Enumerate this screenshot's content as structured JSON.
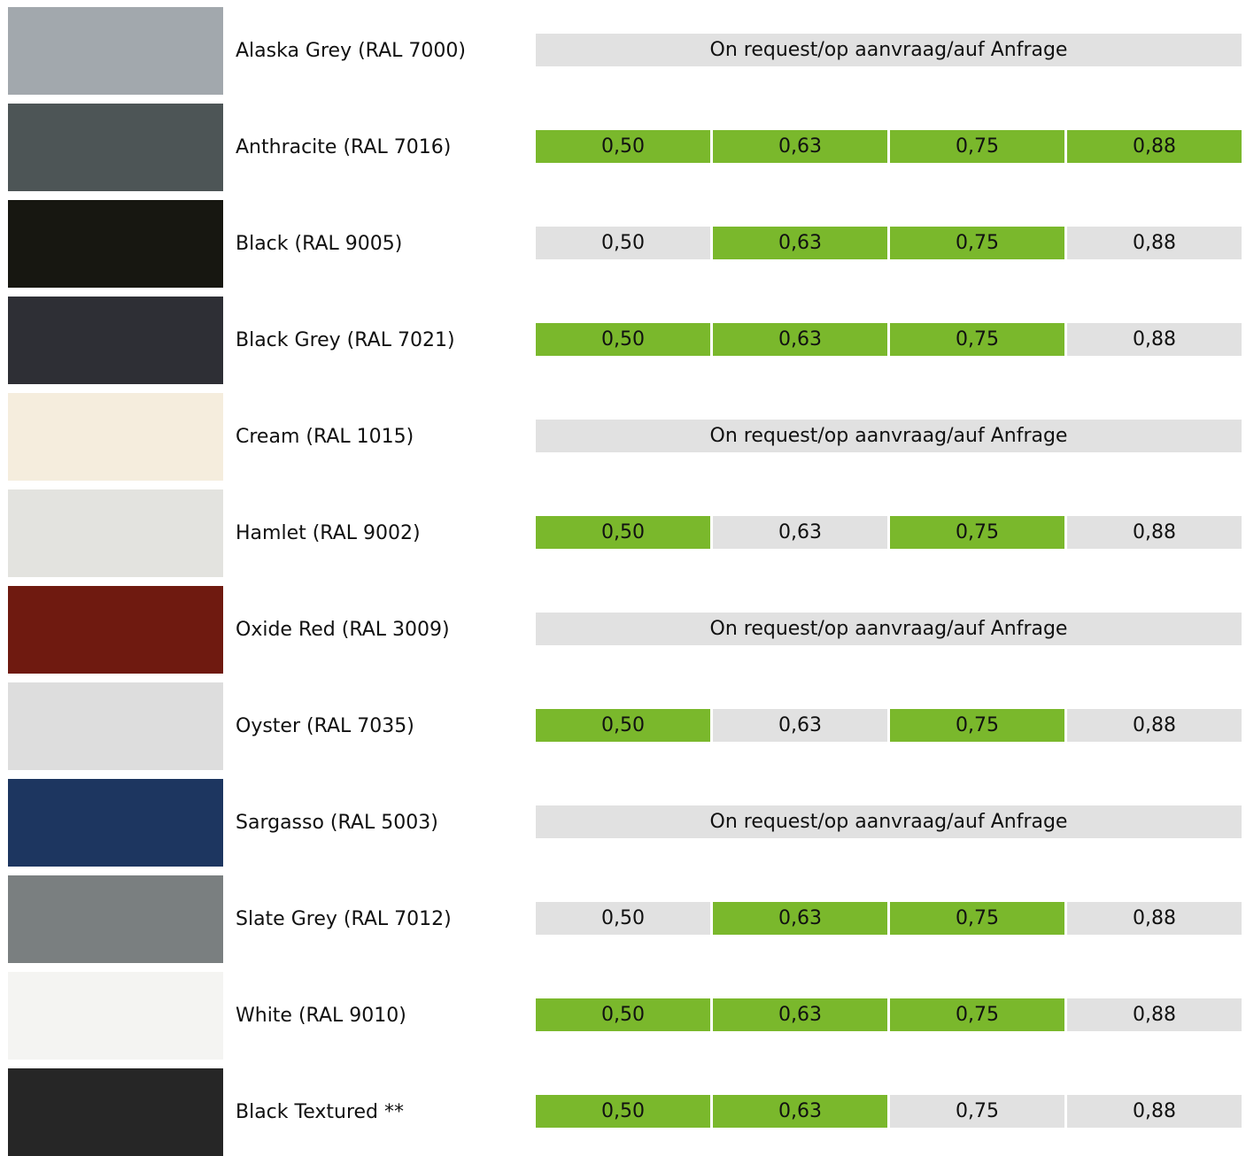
{
  "colors": {
    "available": "#7ab82c",
    "unavailable": "#e1e1e1"
  },
  "thickness_labels": [
    "0,50",
    "0,63",
    "0,75",
    "0,88"
  ],
  "rows": [
    {
      "name": "Alaska Grey (RAL 7000)",
      "swatch": "#a2a8ad",
      "on_request": "On request/op aanvraag/auf Anfrage"
    },
    {
      "name": "Anthracite (RAL 7016)",
      "swatch": "#4d5556",
      "availability": [
        true,
        true,
        true,
        true
      ]
    },
    {
      "name": "Black (RAL 9005)",
      "swatch": "#171711",
      "availability": [
        false,
        true,
        true,
        false
      ]
    },
    {
      "name": "Black Grey (RAL 7021)",
      "swatch": "#2e2f35",
      "availability": [
        true,
        true,
        true,
        false
      ]
    },
    {
      "name": "Cream (RAL 1015)",
      "swatch": "#f5eddd",
      "on_request": "On request/op aanvraag/auf Anfrage"
    },
    {
      "name": "Hamlet (RAL 9002)",
      "swatch": "#e3e3df",
      "availability": [
        true,
        false,
        true,
        false
      ]
    },
    {
      "name": "Oxide Red (RAL 3009)",
      "swatch": "#6f1a10",
      "on_request": "On request/op aanvraag/auf Anfrage"
    },
    {
      "name": "Oyster (RAL 7035)",
      "swatch": "#dddddd",
      "availability": [
        true,
        false,
        true,
        false
      ]
    },
    {
      "name": "Sargasso (RAL 5003)",
      "swatch": "#1d3660",
      "on_request": "On request/op aanvraag/auf Anfrage"
    },
    {
      "name": "Slate Grey (RAL 7012)",
      "swatch": "#7a7f80",
      "availability": [
        false,
        true,
        true,
        false
      ]
    },
    {
      "name": "White (RAL 9010)",
      "swatch": "#f4f4f2",
      "availability": [
        true,
        true,
        true,
        false
      ]
    },
    {
      "name": "Black Textured **",
      "swatch": "#262626",
      "availability": [
        true,
        true,
        false,
        false
      ]
    }
  ]
}
